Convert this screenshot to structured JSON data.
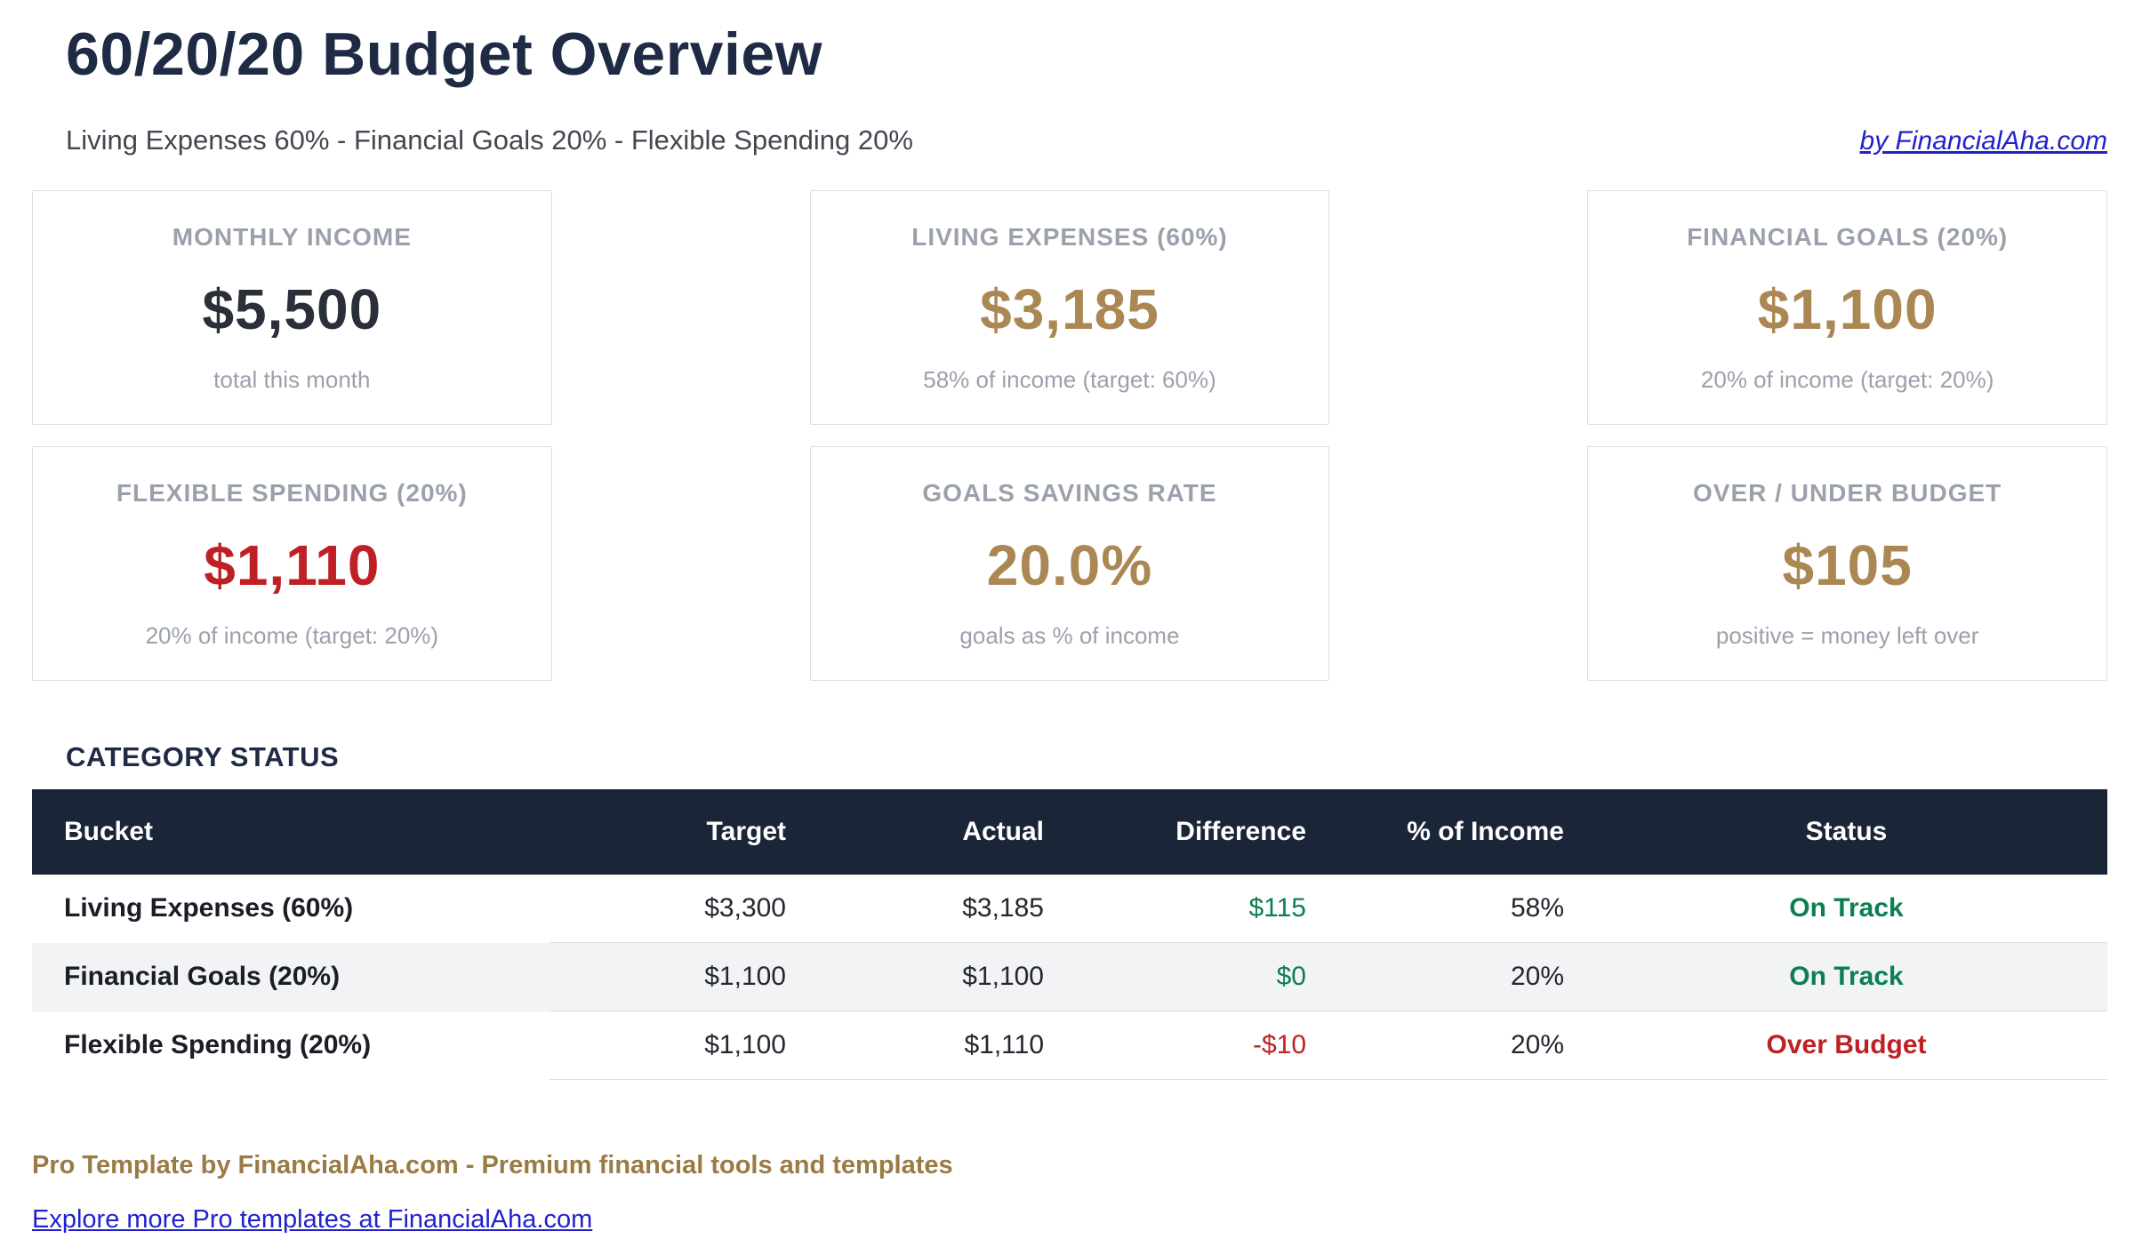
{
  "page": {
    "title": "60/20/20 Budget Overview",
    "subtitle": "Living Expenses 60% - Financial Goals 20% - Flexible Spending 20%",
    "byline": "by FinancialAha.com"
  },
  "cards": [
    {
      "label": "MONTHLY INCOME",
      "value": "$5,500",
      "caption": "total this month",
      "value_color": "#2B2F3A"
    },
    {
      "label": "LIVING EXPENSES (60%)",
      "value": "$3,185",
      "caption": "58% of income (target: 60%)",
      "value_color": "#AB8753"
    },
    {
      "label": "FINANCIAL GOALS (20%)",
      "value": "$1,100",
      "caption": "20% of income (target: 20%)",
      "value_color": "#AB8753"
    },
    {
      "label": "FLEXIBLE SPENDING (20%)",
      "value": "$1,110",
      "caption": "20% of income (target: 20%)",
      "value_color": "#BE2026"
    },
    {
      "label": "GOALS SAVINGS RATE",
      "value": "20.0%",
      "caption": "goals as % of income",
      "value_color": "#AB8753"
    },
    {
      "label": "OVER / UNDER BUDGET",
      "value": "$105",
      "caption": "positive = money left over",
      "value_color": "#AB8753"
    }
  ],
  "table": {
    "section_title": "CATEGORY STATUS",
    "columns": [
      "Bucket",
      "Target",
      "Actual",
      "Difference",
      "% of Income",
      "Status"
    ],
    "rows": [
      {
        "bucket": "Living Expenses (60%)",
        "target": "$3,300",
        "actual": "$3,185",
        "difference": "$115",
        "difference_color": "#0C7F50",
        "pct_of_income": "58%",
        "status": "On Track",
        "status_color": "#0C7F50"
      },
      {
        "bucket": "Financial Goals (20%)",
        "target": "$1,100",
        "actual": "$1,100",
        "difference": "$0",
        "difference_color": "#0C7F50",
        "pct_of_income": "20%",
        "status": "On Track",
        "status_color": "#0C7F50"
      },
      {
        "bucket": "Flexible Spending (20%)",
        "target": "$1,100",
        "actual": "$1,110",
        "difference": "-$10",
        "difference_color": "#BE2026",
        "pct_of_income": "20%",
        "status": "Over Budget",
        "status_color": "#BE2026"
      }
    ]
  },
  "footer": {
    "pro_text": "Pro Template by FinancialAha.com - Premium financial tools and templates",
    "link_text": "Explore more Pro templates at FinancialAha.com"
  },
  "colors": {
    "navy": "#1F2A44",
    "table_header_bg": "#1B2538",
    "gold": "#AB8753",
    "red": "#BE2026",
    "green": "#0C7F50",
    "link_blue": "#2222CC",
    "footer_gold": "#9A7B45",
    "muted_gray": "#9BA1AC",
    "zebra_row": "#F2F3F5"
  }
}
